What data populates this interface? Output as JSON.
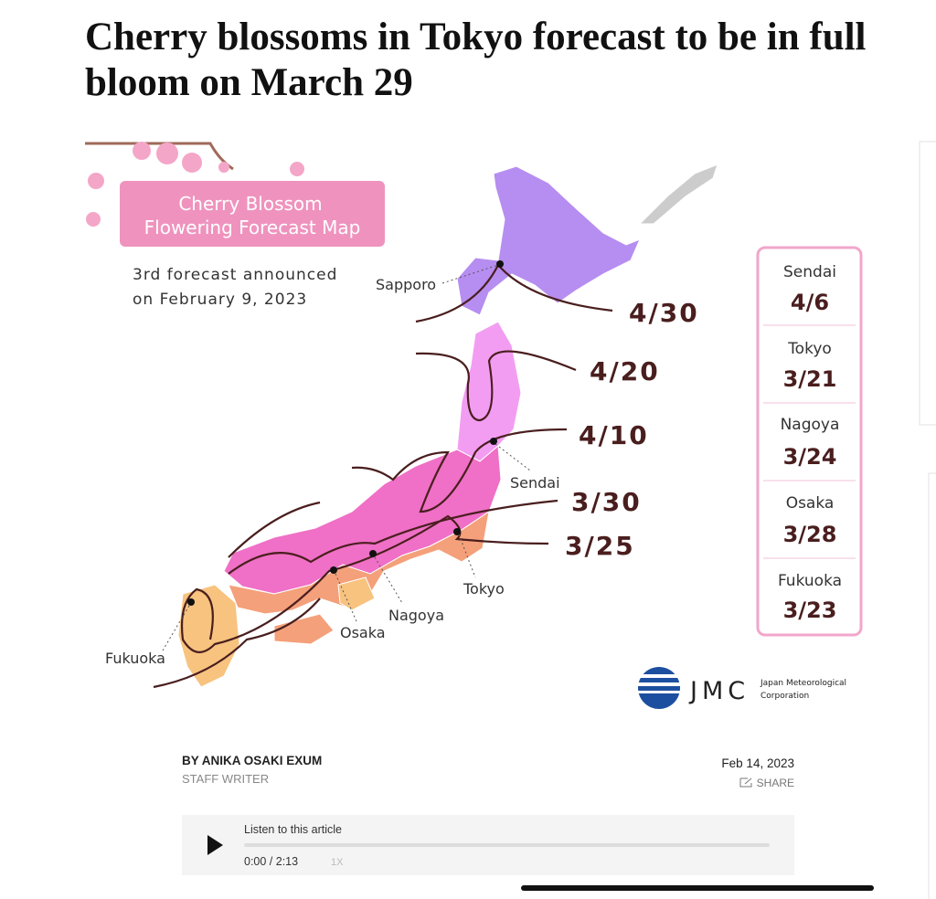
{
  "header": {
    "title": "Cherry blossoms in Tokyo forecast to be in full bloom on March 29"
  },
  "map": {
    "title_lines": [
      "Cherry Blossom",
      "Flowering Forecast Map"
    ],
    "subtitle_lines": [
      "3rd forecast announced",
      "on February 9, 2023"
    ],
    "cities": [
      "Sapporo",
      "Sendai",
      "Tokyo",
      "Nagoya",
      "Osaka",
      "Fukuoka"
    ],
    "isolines": [
      "4/30",
      "4/20",
      "4/10",
      "3/30",
      "3/25"
    ],
    "forecast_table": [
      {
        "city": "Sendai",
        "date": "4/6"
      },
      {
        "city": "Tokyo",
        "date": "3/21"
      },
      {
        "city": "Nagoya",
        "date": "3/24"
      },
      {
        "city": "Osaka",
        "date": "3/28"
      },
      {
        "city": "Fukuoka",
        "date": "3/23"
      }
    ],
    "logo": {
      "mark": "JMC",
      "lines": [
        "Japan Meteorological",
        "Corporation"
      ]
    }
  },
  "byline": {
    "author": "BY ANIKA OSAKI EXUM",
    "role": "STAFF WRITER",
    "date": "Feb 14, 2023",
    "share": "SHARE"
  },
  "audio": {
    "label": "Listen to this article",
    "time": "0:00 / 2:13",
    "speed": "1X"
  }
}
